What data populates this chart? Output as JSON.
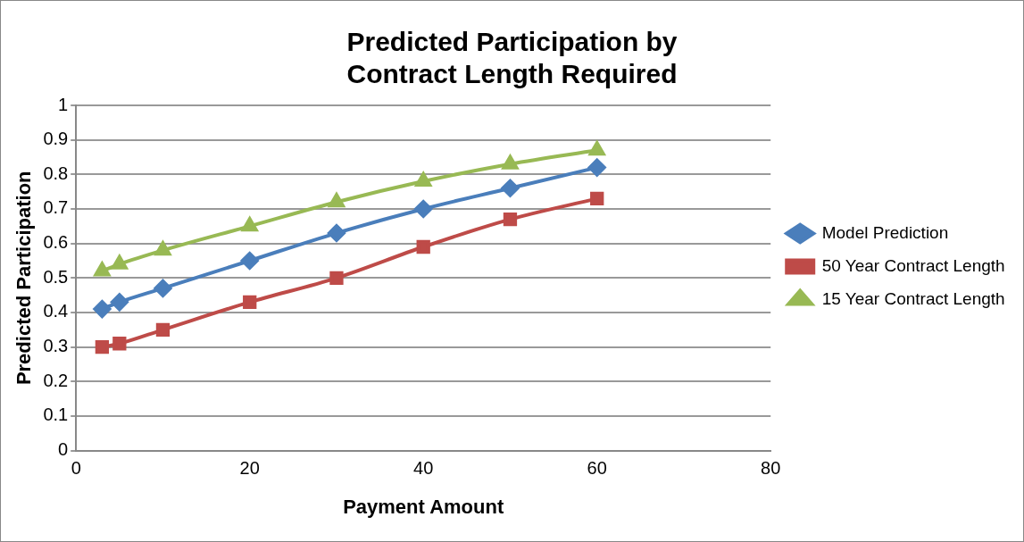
{
  "chart_data": {
    "type": "line",
    "title": "Predicted Participation by Contract Length Required",
    "xlabel": "Payment Amount",
    "ylabel": "Predicted Participation",
    "x": [
      3,
      5,
      10,
      20,
      30,
      40,
      50,
      60
    ],
    "series": [
      {
        "name": "Model Prediction",
        "color": "#4a7ebb",
        "marker": "diamond",
        "values": [
          0.41,
          0.43,
          0.47,
          0.55,
          0.63,
          0.7,
          0.76,
          0.82
        ]
      },
      {
        "name": "50 Year Contract Length",
        "color": "#be4b48",
        "marker": "square",
        "values": [
          0.3,
          0.31,
          0.35,
          0.43,
          0.5,
          0.59,
          0.67,
          0.73
        ]
      },
      {
        "name": "15 Year Contract Length",
        "color": "#98b954",
        "marker": "triangle",
        "values": [
          0.52,
          0.54,
          0.58,
          0.65,
          0.72,
          0.78,
          0.83,
          0.87
        ]
      }
    ],
    "xlim": [
      0,
      80
    ],
    "xticks": [
      0,
      20,
      40,
      60,
      80
    ],
    "ylim": [
      0,
      1
    ],
    "yticks": [
      0,
      0.1,
      0.2,
      0.3,
      0.4,
      0.5,
      0.6,
      0.7,
      0.8,
      0.9,
      1
    ],
    "grid": "y",
    "legend": "right",
    "line_style": "solid"
  }
}
